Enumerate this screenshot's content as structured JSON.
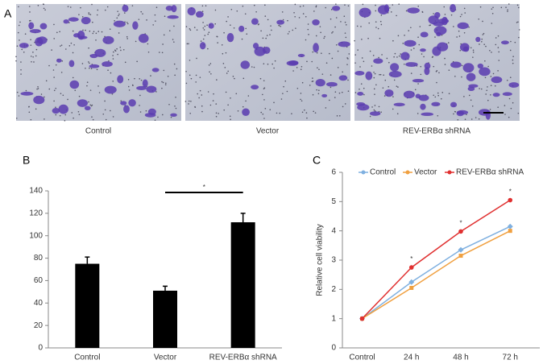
{
  "figure": {
    "panel_labels": [
      "A",
      "B",
      "C"
    ],
    "image_captions": [
      "Control",
      "Vector",
      "REV-ERBα shRNA"
    ]
  },
  "chart_data": [
    {
      "type": "bar",
      "categories": [
        "Control",
        "Vector",
        "REV-ERBα shRNA"
      ],
      "values": [
        75,
        51,
        112
      ],
      "errors": [
        6,
        4,
        8
      ],
      "color": "#000000",
      "ylim": [
        0,
        140
      ],
      "yticks": [
        0,
        20,
        40,
        60,
        80,
        100,
        120,
        140
      ],
      "annotation": "*"
    },
    {
      "type": "line",
      "y_label": "Relative cell viability",
      "categories": [
        "Control",
        "24 h",
        "48 h",
        "72 h"
      ],
      "series": [
        {
          "name": "Control",
          "color": "#7fb0e0",
          "values": [
            1,
            2.25,
            3.35,
            4.15
          ]
        },
        {
          "name": "Vector",
          "color": "#f0a040",
          "values": [
            1,
            2.05,
            3.15,
            4.0
          ]
        },
        {
          "name": "REV-ERBα shRNA",
          "color": "#e03030",
          "values": [
            1,
            2.75,
            3.98,
            5.05
          ],
          "value_labels": [
            null,
            "*",
            "*",
            "*"
          ]
        }
      ],
      "ylim": [
        0,
        6
      ],
      "yticks": [
        0,
        1,
        2,
        3,
        4,
        5,
        6
      ]
    }
  ]
}
